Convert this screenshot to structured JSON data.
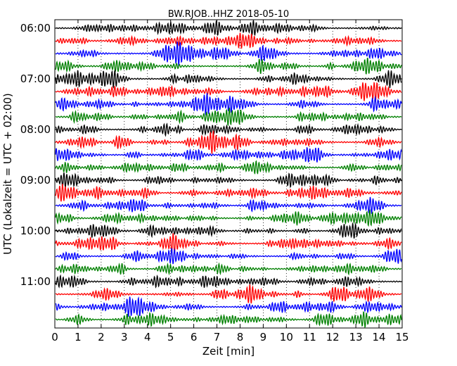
{
  "chart_data": {
    "type": "line",
    "title": "BW.RJOB..HHZ 2018-05-10",
    "xlabel": "Zeit  [min]",
    "ylabel": "UTC (Lokalzeit = UTC + 02:00)",
    "xlim": [
      0,
      15
    ],
    "x_ticks": [
      "0",
      "1",
      "2",
      "3",
      "4",
      "5",
      "6",
      "7",
      "8",
      "9",
      "10",
      "11",
      "12",
      "13",
      "14",
      "15"
    ],
    "y_tick_labels": [
      "06:00",
      "07:00",
      "08:00",
      "09:00",
      "10:00",
      "11:00"
    ],
    "trace_interval_minutes": 15,
    "trace_count": 24,
    "grid": "vertical dotted at each minute",
    "series_colors": [
      "#000000",
      "#ff0000",
      "#0000ff",
      "#008000"
    ]
  }
}
